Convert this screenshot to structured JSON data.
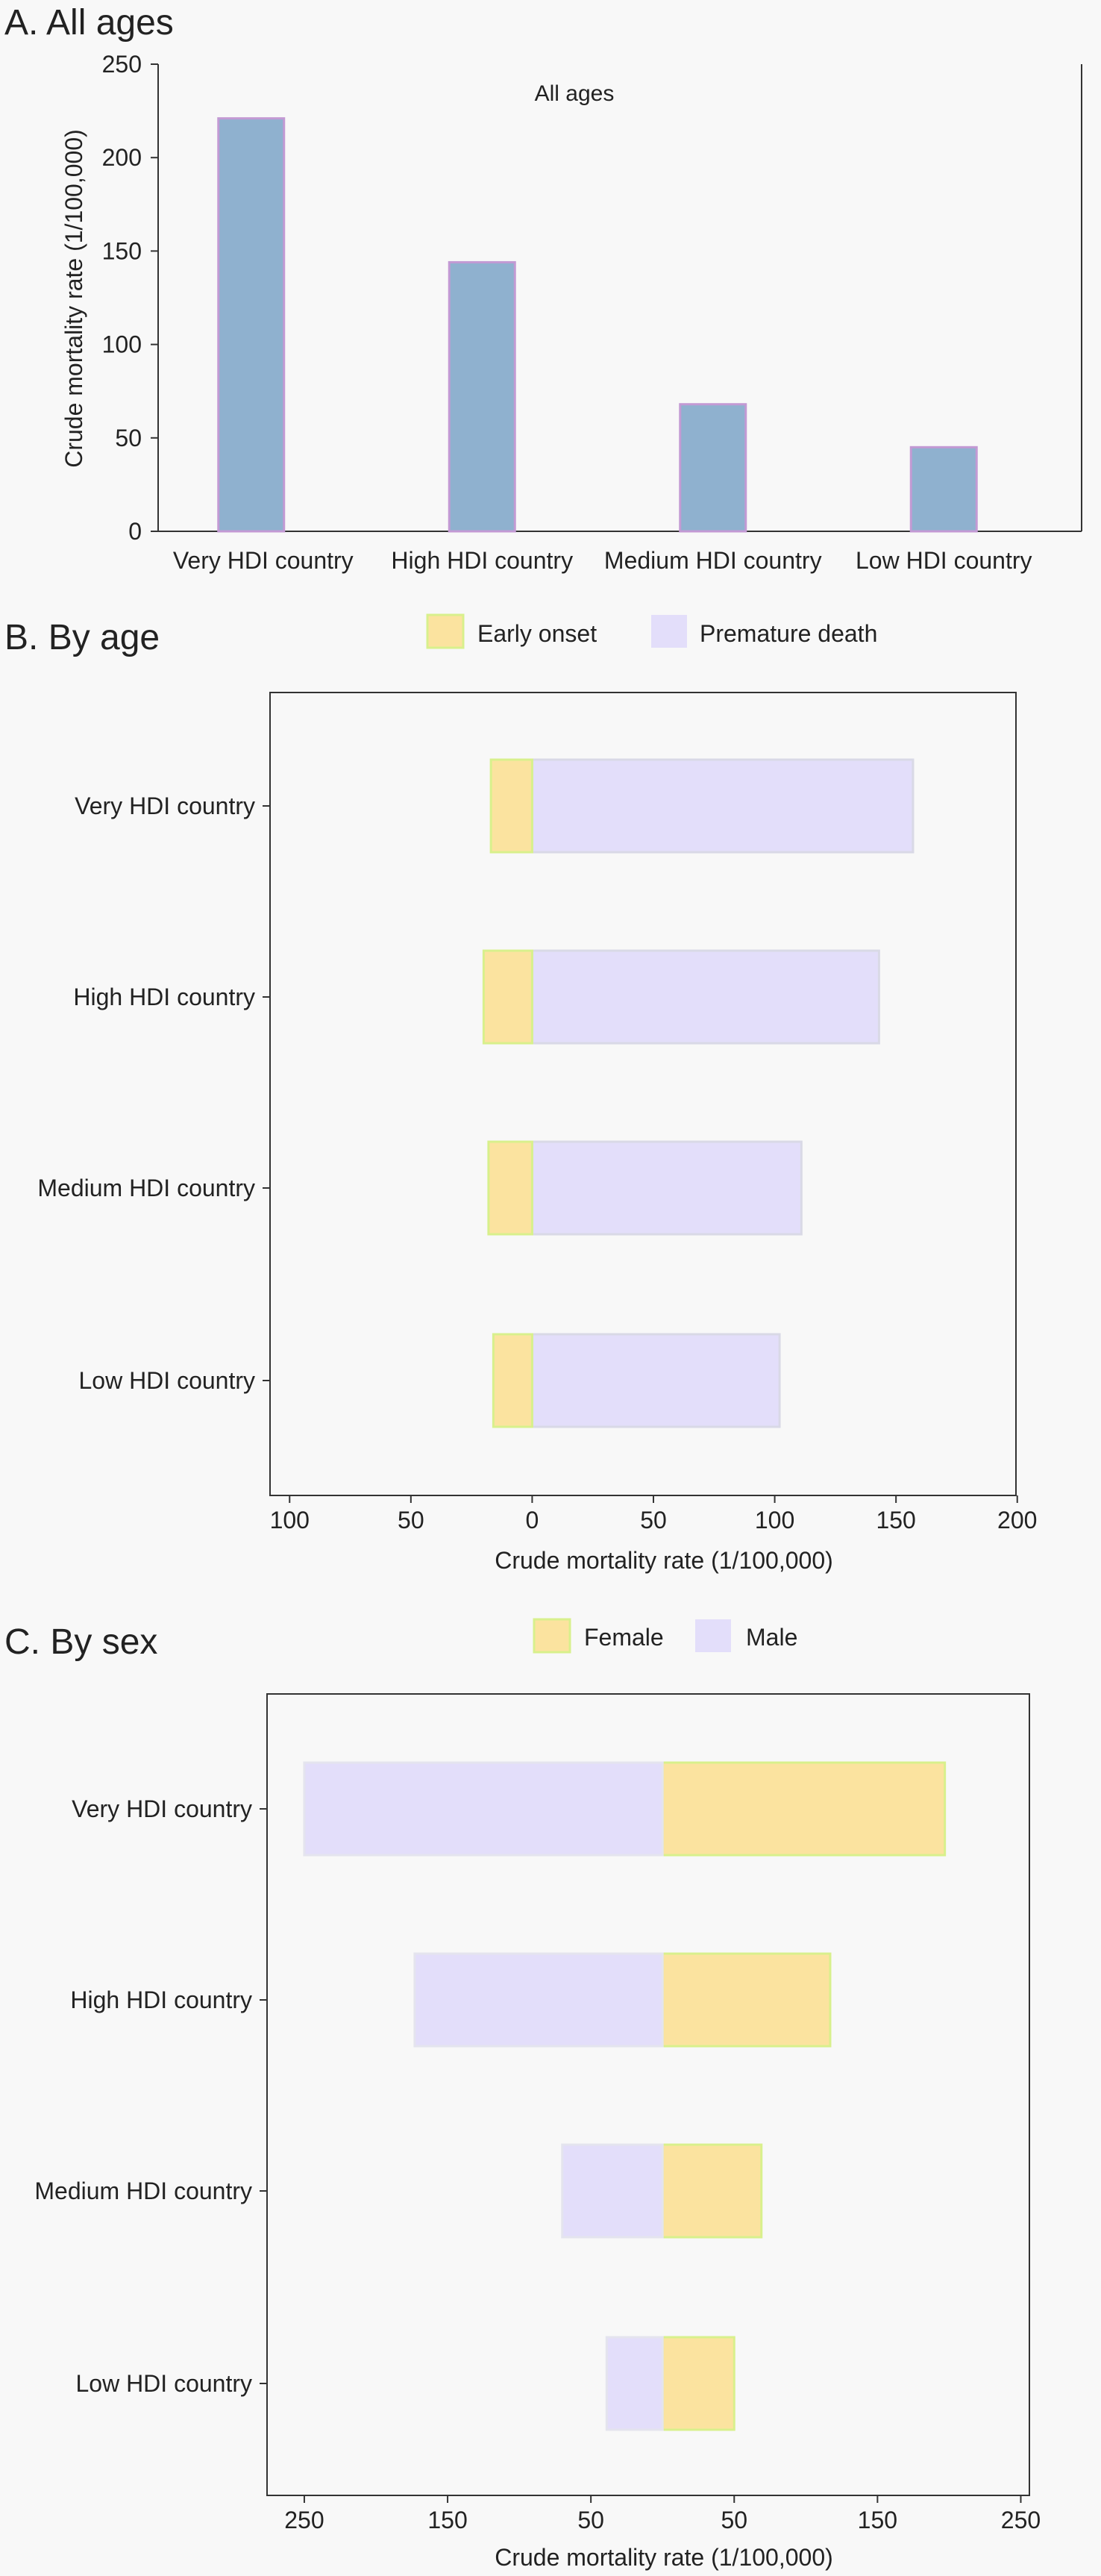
{
  "colors": {
    "bar_fill": "#8fb1cf",
    "bar_edge": "#c39ad4",
    "early_onset": "#fbe39f",
    "early_onset_edge": "#d8f08c",
    "premature_death": "#e3defa",
    "female": "#fbe39f",
    "female_edge": "#d8f08c",
    "male": "#e3defa"
  },
  "chart_data": [
    {
      "type": "bar",
      "title": "A. All ages",
      "inner_title": "All ages",
      "categories": [
        "Very HDI country",
        "High HDI country",
        "Medium HDI country",
        "Low HDI country"
      ],
      "values": [
        221,
        144,
        68,
        45
      ],
      "ylabel": "Crude mortality rate (1/100,000)",
      "ylim": [
        0,
        250
      ],
      "yticks": [
        "0",
        "50",
        "100",
        "150",
        "200",
        "250"
      ],
      "grid": false
    },
    {
      "type": "bar",
      "orientation": "horizontal",
      "title": "B. By age",
      "categories": [
        "Very HDI country",
        "High HDI country",
        "Medium HDI country",
        "Low HDI country"
      ],
      "series": [
        {
          "name": "Early onset",
          "values": [
            17,
            20,
            18,
            16
          ]
        },
        {
          "name": "Premature death",
          "values": [
            157,
            143,
            111,
            102
          ]
        }
      ],
      "xlabel": "Crude mortality rate (1/100,000)",
      "xlim": [
        -105,
        205
      ],
      "xticks": [
        {
          "value": -100,
          "label": "100"
        },
        {
          "value": -50,
          "label": "50"
        },
        {
          "value": 0,
          "label": "0"
        },
        {
          "value": 50,
          "label": "50"
        },
        {
          "value": 100,
          "label": "100"
        },
        {
          "value": 150,
          "label": "150"
        },
        {
          "value": 200,
          "label": "200"
        }
      ],
      "legend_position": "top"
    },
    {
      "type": "bar",
      "orientation": "horizontal",
      "title": "C. By sex",
      "categories": [
        "Very HDI country",
        "High HDI country",
        "Medium HDI country",
        "Low HDI country"
      ],
      "series": [
        {
          "name": "Female",
          "values": [
            197,
            117,
            69,
            50
          ]
        },
        {
          "name": "Male",
          "values": [
            250,
            173,
            70,
            39
          ]
        }
      ],
      "xlabel": "Crude mortality rate (1/100,000)",
      "xlim": [
        -276,
        256
      ],
      "xticks": [
        {
          "value": -250,
          "label": "250"
        },
        {
          "value": -150,
          "label": "150"
        },
        {
          "value": -50,
          "label": "50"
        },
        {
          "value": 50,
          "label": "50"
        },
        {
          "value": 150,
          "label": "150"
        },
        {
          "value": 250,
          "label": "250"
        }
      ],
      "legend_position": "top"
    }
  ]
}
